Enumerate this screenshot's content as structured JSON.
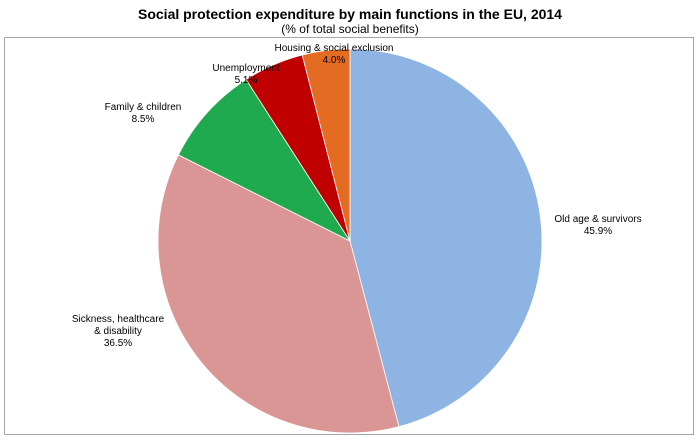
{
  "chart_data": {
    "type": "pie",
    "title": "Social protection expenditure by main functions in the EU, 2014",
    "subtitle": "(% of total social benefits)",
    "slices": [
      {
        "label_lines": [
          "Old age & survivors"
        ],
        "value": 45.9,
        "value_label": "45.9%",
        "color": "#8eb4e3"
      },
      {
        "label_lines": [
          "Sickness, healthcare",
          "& disability"
        ],
        "value": 36.5,
        "value_label": "36.5%",
        "color": "#d99694"
      },
      {
        "label_lines": [
          "Family & children"
        ],
        "value": 8.5,
        "value_label": "8.5%",
        "color": "#1faa4f"
      },
      {
        "label_lines": [
          "Unemployment"
        ],
        "value": 5.1,
        "value_label": "5.1%",
        "color": "#c00000"
      },
      {
        "label_lines": [
          "Housing & social exclusion"
        ],
        "value": 4.0,
        "value_label": "4.0%",
        "color": "#e46c22"
      }
    ],
    "start": "top",
    "direction": "clockwise",
    "legend": "none"
  }
}
